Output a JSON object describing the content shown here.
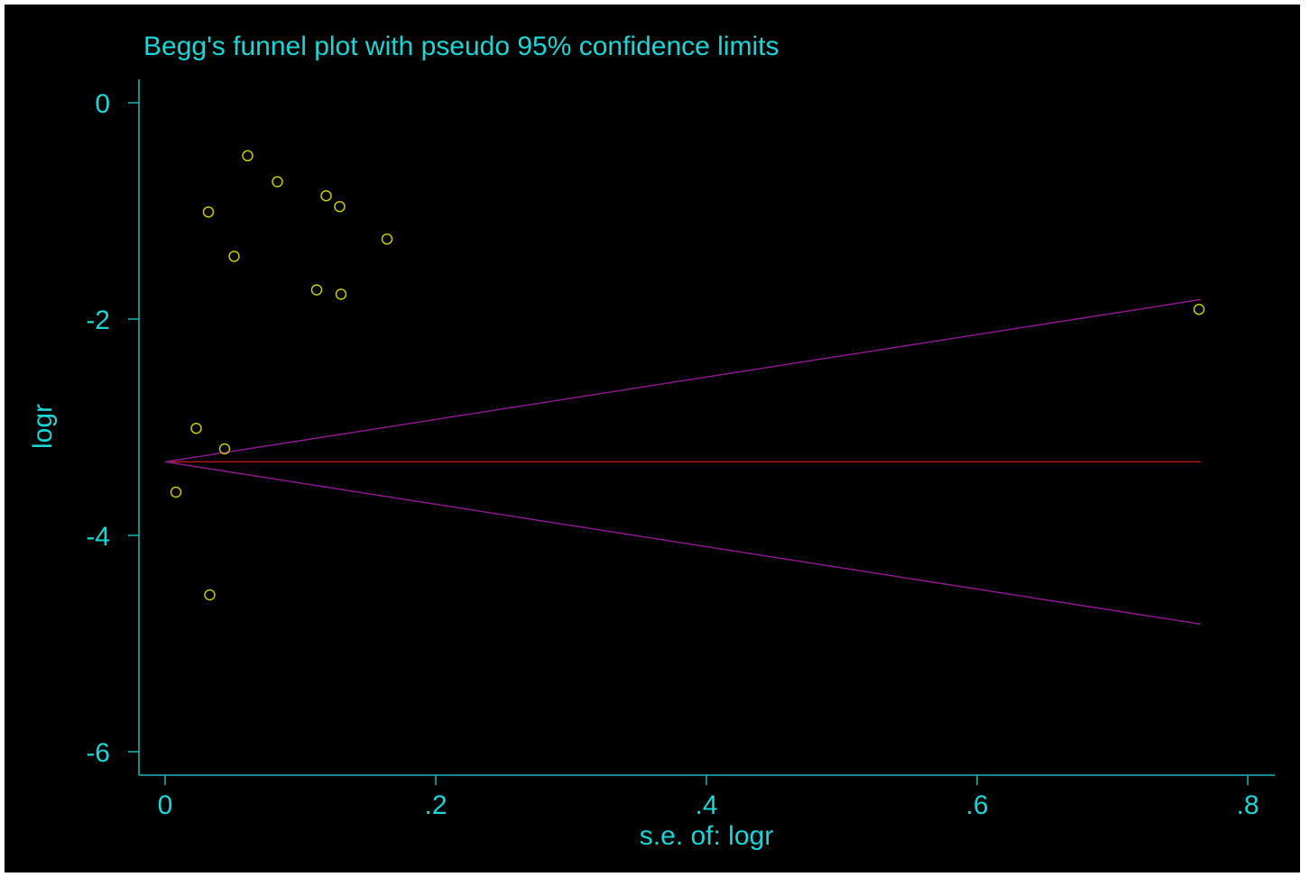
{
  "chart_data": {
    "type": "scatter",
    "title": "Begg's funnel plot with pseudo 95% confidence limits",
    "xlabel": "s.e. of: logr",
    "ylabel": "logr",
    "xlim": [
      0,
      0.8
    ],
    "ylim": [
      -6,
      0
    ],
    "x_ticks": [
      0,
      0.2,
      0.4,
      0.6,
      0.8
    ],
    "x_tick_labels": [
      "0",
      ".2",
      ".4",
      ".6",
      ".8"
    ],
    "y_ticks": [
      0,
      -2,
      -4,
      -6
    ],
    "y_tick_labels": [
      "0",
      "-2",
      "-4",
      "-6"
    ],
    "grid": false,
    "colors": {
      "text": "#1ad6d6",
      "axis": "#1ab8b8",
      "points": "#c8c800",
      "pooled_line": "#b01818",
      "confidence_limits": "#8a1a8a",
      "background": "#000000"
    },
    "points": [
      {
        "x": 0.061,
        "y": -0.49
      },
      {
        "x": 0.083,
        "y": -0.73
      },
      {
        "x": 0.119,
        "y": -0.86
      },
      {
        "x": 0.129,
        "y": -0.96
      },
      {
        "x": 0.032,
        "y": -1.01
      },
      {
        "x": 0.164,
        "y": -1.26
      },
      {
        "x": 0.051,
        "y": -1.42
      },
      {
        "x": 0.112,
        "y": -1.73
      },
      {
        "x": 0.13,
        "y": -1.77
      },
      {
        "x": 0.764,
        "y": -1.91
      },
      {
        "x": 0.023,
        "y": -3.01
      },
      {
        "x": 0.044,
        "y": -3.2
      },
      {
        "x": 0.008,
        "y": -3.6
      },
      {
        "x": 0.033,
        "y": -4.55
      }
    ],
    "pooled_estimate": -3.32,
    "confidence_limits": {
      "x_end": 0.765,
      "upper_end": -1.82,
      "lower_end": -4.82
    }
  }
}
